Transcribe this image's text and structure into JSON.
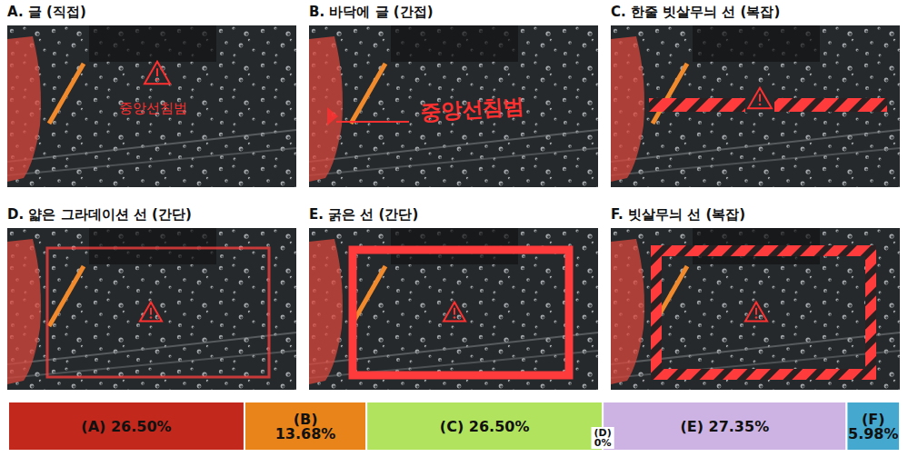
{
  "panels": [
    {
      "title": "A. 글 (직접)",
      "text": "중앙선침범"
    },
    {
      "title": "B. 바닥에 글 (간접)",
      "text": "중앙선침범"
    },
    {
      "title": "C. 한줄 빗살무늬 선 (복잡)"
    },
    {
      "title": "D. 얇은 그라데이션 선 (간단)"
    },
    {
      "title": "E. 굵은 선 (간단)"
    },
    {
      "title": "F. 빗살무늬 선 (복잡)"
    }
  ],
  "chart_data": {
    "type": "bar",
    "orientation": "horizontal",
    "stacked": true,
    "categories": [
      "A",
      "B",
      "C",
      "D",
      "E",
      "F"
    ],
    "values": [
      26.5,
      13.68,
      26.5,
      0,
      27.35,
      5.98
    ],
    "value_labels": [
      "(A) 26.50%",
      "(B) 13.68%",
      "(C) 26.50%",
      "(D) 0%",
      "(E) 27.35%",
      "(F) 5.98%"
    ],
    "colors": [
      "#c2291c",
      "#e8841a",
      "#b1e35e",
      "#ffffff",
      "#cdb3e3",
      "#45a9cf"
    ],
    "xlim": [
      0,
      100
    ],
    "data_labels": true,
    "tick_labels": false
  }
}
